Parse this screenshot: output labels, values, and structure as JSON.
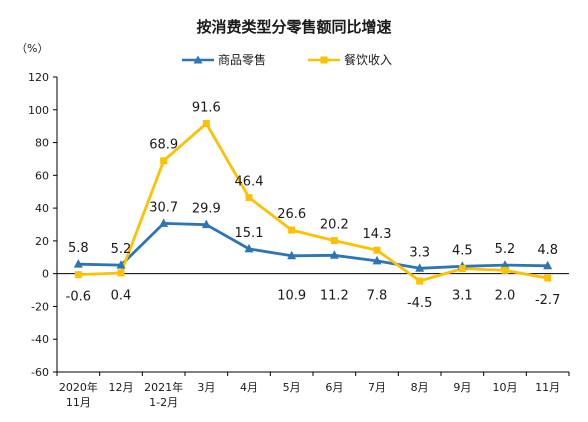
{
  "chart_data": {
    "type": "line",
    "title": "按消费类型分零售额同比增速",
    "unit": "（%）",
    "categories": [
      [
        "2020年",
        "11月"
      ],
      [
        "12月"
      ],
      [
        "2021年",
        "1-2月"
      ],
      [
        "3月"
      ],
      [
        "4月"
      ],
      [
        "5月"
      ],
      [
        "6月"
      ],
      [
        "7月"
      ],
      [
        "8月"
      ],
      [
        "9月"
      ],
      [
        "10月"
      ],
      [
        "11月"
      ]
    ],
    "ylim": [
      -60,
      120
    ],
    "yticks": [
      -60,
      -40,
      -20,
      0,
      20,
      40,
      60,
      80,
      100,
      120
    ],
    "ytick_labels": [
      "-60",
      "-40",
      "-20",
      "0",
      "20",
      "40",
      "60",
      "80",
      "100",
      "120"
    ],
    "series": [
      {
        "name": "商品零售",
        "color": "#2e75b6",
        "marker": "triangle",
        "values": [
          5.8,
          5.2,
          30.7,
          29.9,
          15.1,
          10.9,
          11.2,
          7.8,
          3.3,
          4.5,
          5.2,
          4.8
        ],
        "labels": [
          "5.8",
          "5.2",
          "30.7",
          "29.9",
          "15.1",
          "10.9",
          "11.2",
          "7.8",
          "3.3",
          "4.5",
          "5.2",
          "4.8"
        ]
      },
      {
        "name": "餐饮收入",
        "color": "#ffc000",
        "marker": "square",
        "values": [
          -0.6,
          0.4,
          68.9,
          91.6,
          46.4,
          26.6,
          20.2,
          14.3,
          -4.5,
          3.1,
          2.0,
          -2.7
        ],
        "labels": [
          "-0.6",
          "0.4",
          "68.9",
          "91.6",
          "46.4",
          "26.6",
          "20.2",
          "14.3",
          "-4.5",
          "3.1",
          "2.0",
          "-2.7"
        ]
      }
    ],
    "legend_position": "top-center",
    "grid": false
  }
}
